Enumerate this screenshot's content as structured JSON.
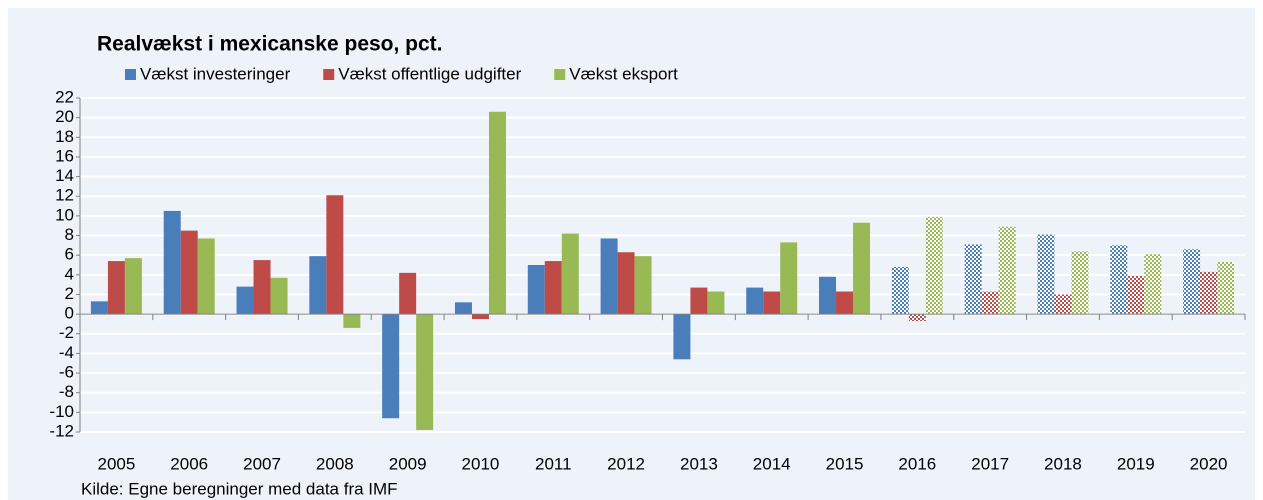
{
  "chart_data": {
    "type": "bar",
    "title": "Realvækst i mexicanske peso, pct.",
    "source": "Kilde: Egne beregninger med data fra IMF",
    "categories": [
      "2005",
      "2006",
      "2007",
      "2008",
      "2009",
      "2010",
      "2011",
      "2012",
      "2013",
      "2014",
      "2015",
      "2016",
      "2017",
      "2018",
      "2019",
      "2020"
    ],
    "series": [
      {
        "name": "Vækst investeringer",
        "color": "#4a7ebb",
        "values": [
          1.3,
          10.5,
          2.8,
          5.9,
          -10.6,
          1.2,
          5.0,
          7.7,
          -4.6,
          2.7,
          3.8,
          4.8,
          7.1,
          8.1,
          7.0,
          6.6
        ]
      },
      {
        "name": "Vækst offentlige udgifter",
        "color": "#be4b48",
        "values": [
          5.4,
          8.5,
          5.5,
          12.1,
          4.2,
          -0.5,
          5.4,
          6.3,
          2.7,
          2.3,
          2.3,
          -0.7,
          2.3,
          2.0,
          3.9,
          4.3
        ]
      },
      {
        "name": "Vækst eksport",
        "color": "#98b954",
        "values": [
          5.7,
          7.7,
          3.7,
          -1.4,
          -11.8,
          20.6,
          8.2,
          5.9,
          2.3,
          7.3,
          9.3,
          9.9,
          8.9,
          6.4,
          6.1,
          5.3
        ]
      }
    ],
    "hatched_from": "2016",
    "ylim": [
      -12,
      22
    ],
    "yticks": [
      -12,
      -10,
      -8,
      -6,
      -4,
      -2,
      0,
      2,
      4,
      6,
      8,
      10,
      12,
      14,
      16,
      18,
      20,
      22
    ],
    "grid": true
  }
}
